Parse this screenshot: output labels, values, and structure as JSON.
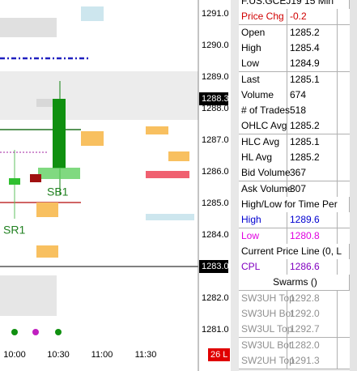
{
  "price_axis": {
    "labels": [
      "1291.0",
      "1290.0",
      "1289.0",
      "1288.0",
      "1287.0",
      "1286.0",
      "1285.0",
      "1284.0",
      "1283.0",
      "1282.0",
      "1281.0"
    ],
    "current_price": "1288.3",
    "line_price": "1283.0"
  },
  "time_axis": [
    "10:00",
    "10:30",
    "11:00",
    "11:30"
  ],
  "badge": "26 L",
  "chart_labels": {
    "sb1": "SB1",
    "sr1": "SR1"
  },
  "data_window": {
    "title": "F.US.GCEJ19  15 Min",
    "rows": [
      {
        "label": "Price Chg",
        "value": "-0.2",
        "color": "#d00000"
      },
      {
        "label": "Open",
        "value": "1285.2"
      },
      {
        "label": "High",
        "value": "1285.4"
      },
      {
        "label": "Low",
        "value": "1284.9"
      },
      {
        "label": "Last",
        "value": "1285.1"
      },
      {
        "label": "Volume",
        "value": "674"
      },
      {
        "label": "# of Trades",
        "value": "518"
      },
      {
        "label": "OHLC Avg",
        "value": "1285.2"
      },
      {
        "label": "HLC Avg",
        "value": "1285.1"
      },
      {
        "label": "HL Avg",
        "value": "1285.2"
      },
      {
        "label": "Bid Volume",
        "value": "367"
      },
      {
        "label": "Ask Volume",
        "value": "307"
      },
      {
        "label": "High/Low for Time Per"
      },
      {
        "label": "High",
        "value": "1289.6",
        "color": "#0000d0"
      },
      {
        "label": "Low",
        "value": "1280.8",
        "color": "#e000e0"
      },
      {
        "label": "Current Price Line (0, L"
      },
      {
        "label": "CPL",
        "value": "1286.6",
        "color": "#8000c0"
      },
      {
        "label": "Swarms ()",
        "center": true
      },
      {
        "label": "SW3UH Top",
        "value": "1292.8",
        "color": "#909090"
      },
      {
        "label": "SW3UH Bot",
        "value": "1292.0",
        "color": "#909090"
      },
      {
        "label": "SW3UL Top",
        "value": "1292.7",
        "color": "#909090"
      },
      {
        "label": "SW3UL Bot",
        "value": "1282.0",
        "color": "#909090"
      },
      {
        "label": "SW2UH Top",
        "value": "1291.3",
        "color": "#909090"
      }
    ]
  }
}
